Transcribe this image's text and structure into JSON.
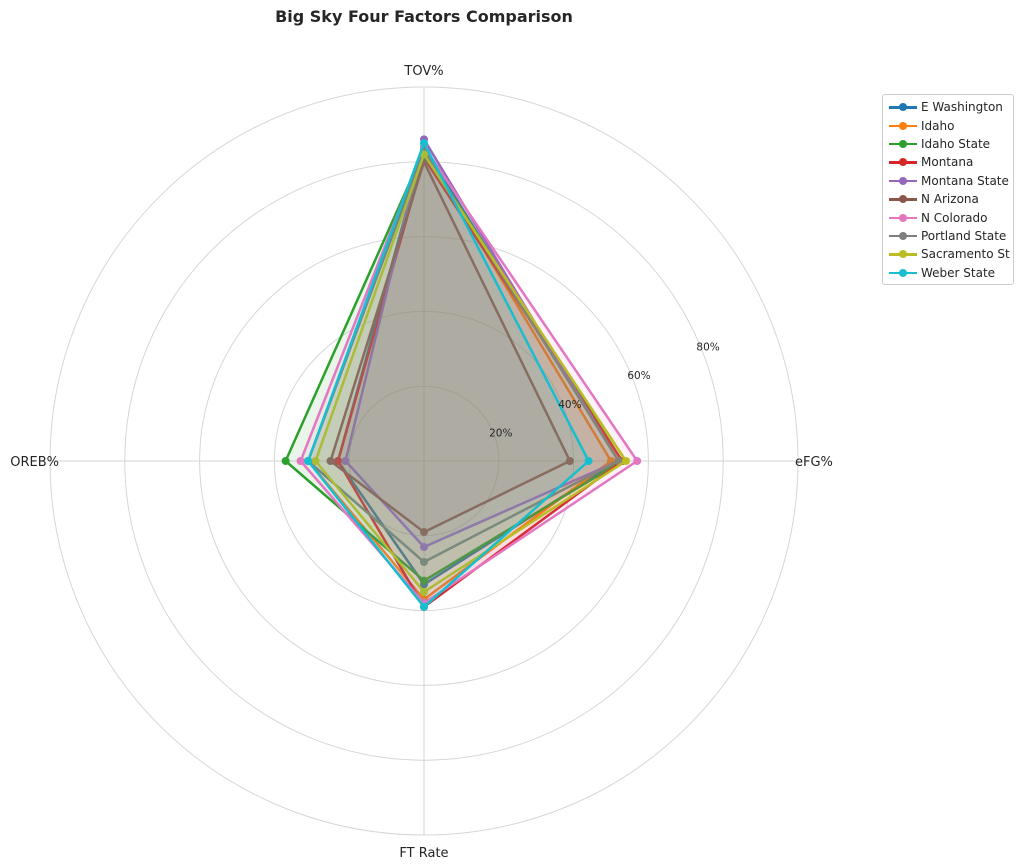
{
  "chart_data": {
    "type": "radar",
    "title": "Big Sky Four Factors Comparison",
    "axes": [
      "eFG%",
      "TOV%",
      "OREB%",
      "FT Rate"
    ],
    "radial_ticks": [
      20,
      40,
      60,
      80
    ],
    "radial_tick_labels": [
      "20%",
      "40%",
      "60%",
      "80%"
    ],
    "rlim": [
      0,
      100
    ],
    "grid": true,
    "legend_position": "top-right outside",
    "series": [
      {
        "name": "E Washington",
        "color": "#1f77b4",
        "values": [
          52.0,
          84.0,
          23.0,
          33.0
        ]
      },
      {
        "name": "Idaho",
        "color": "#ff7f0e",
        "values": [
          50.0,
          83.0,
          31.0,
          37.0
        ]
      },
      {
        "name": "Idaho State",
        "color": "#2ca02c",
        "values": [
          53.0,
          83.0,
          37.0,
          32.0
        ]
      },
      {
        "name": "Montana",
        "color": "#d62728",
        "values": [
          53.0,
          81.0,
          23.0,
          39.0
        ]
      },
      {
        "name": "Montana State",
        "color": "#9467bd",
        "values": [
          52.0,
          86.0,
          21.0,
          23.0
        ]
      },
      {
        "name": "N Arizona",
        "color": "#8c564b",
        "values": [
          39.0,
          80.0,
          25.0,
          19.0
        ]
      },
      {
        "name": "N Colorado",
        "color": "#e377c2",
        "values": [
          57.0,
          84.0,
          33.0,
          38.0
        ]
      },
      {
        "name": "Portland State",
        "color": "#7f7f7f",
        "values": [
          52.0,
          83.0,
          31.0,
          27.0
        ]
      },
      {
        "name": "Sacramento St",
        "color": "#bcbd22",
        "values": [
          54.0,
          82.0,
          29.0,
          35.0
        ]
      },
      {
        "name": "Weber State",
        "color": "#17becf",
        "values": [
          44.0,
          85.0,
          31.0,
          39.0
        ]
      }
    ]
  }
}
